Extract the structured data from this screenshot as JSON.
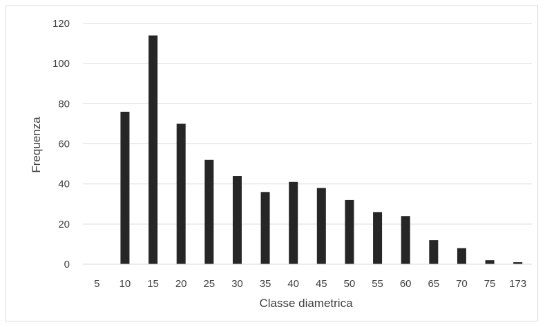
{
  "chart_data": {
    "type": "bar",
    "xlabel": "Classe diametrica",
    "ylabel": "Frequenza",
    "categories": [
      "5",
      "10",
      "15",
      "20",
      "25",
      "30",
      "35",
      "40",
      "45",
      "50",
      "55",
      "60",
      "65",
      "70",
      "75",
      "173"
    ],
    "values": [
      0,
      76,
      114,
      70,
      52,
      44,
      36,
      41,
      38,
      32,
      26,
      24,
      12,
      8,
      2,
      1
    ],
    "ylim": [
      0,
      120
    ],
    "yticks": [
      "0",
      "20",
      "40",
      "60",
      "80",
      "100",
      "120"
    ],
    "grid": true,
    "bar_color": "#262626",
    "grid_color": "#d9d9d9"
  }
}
